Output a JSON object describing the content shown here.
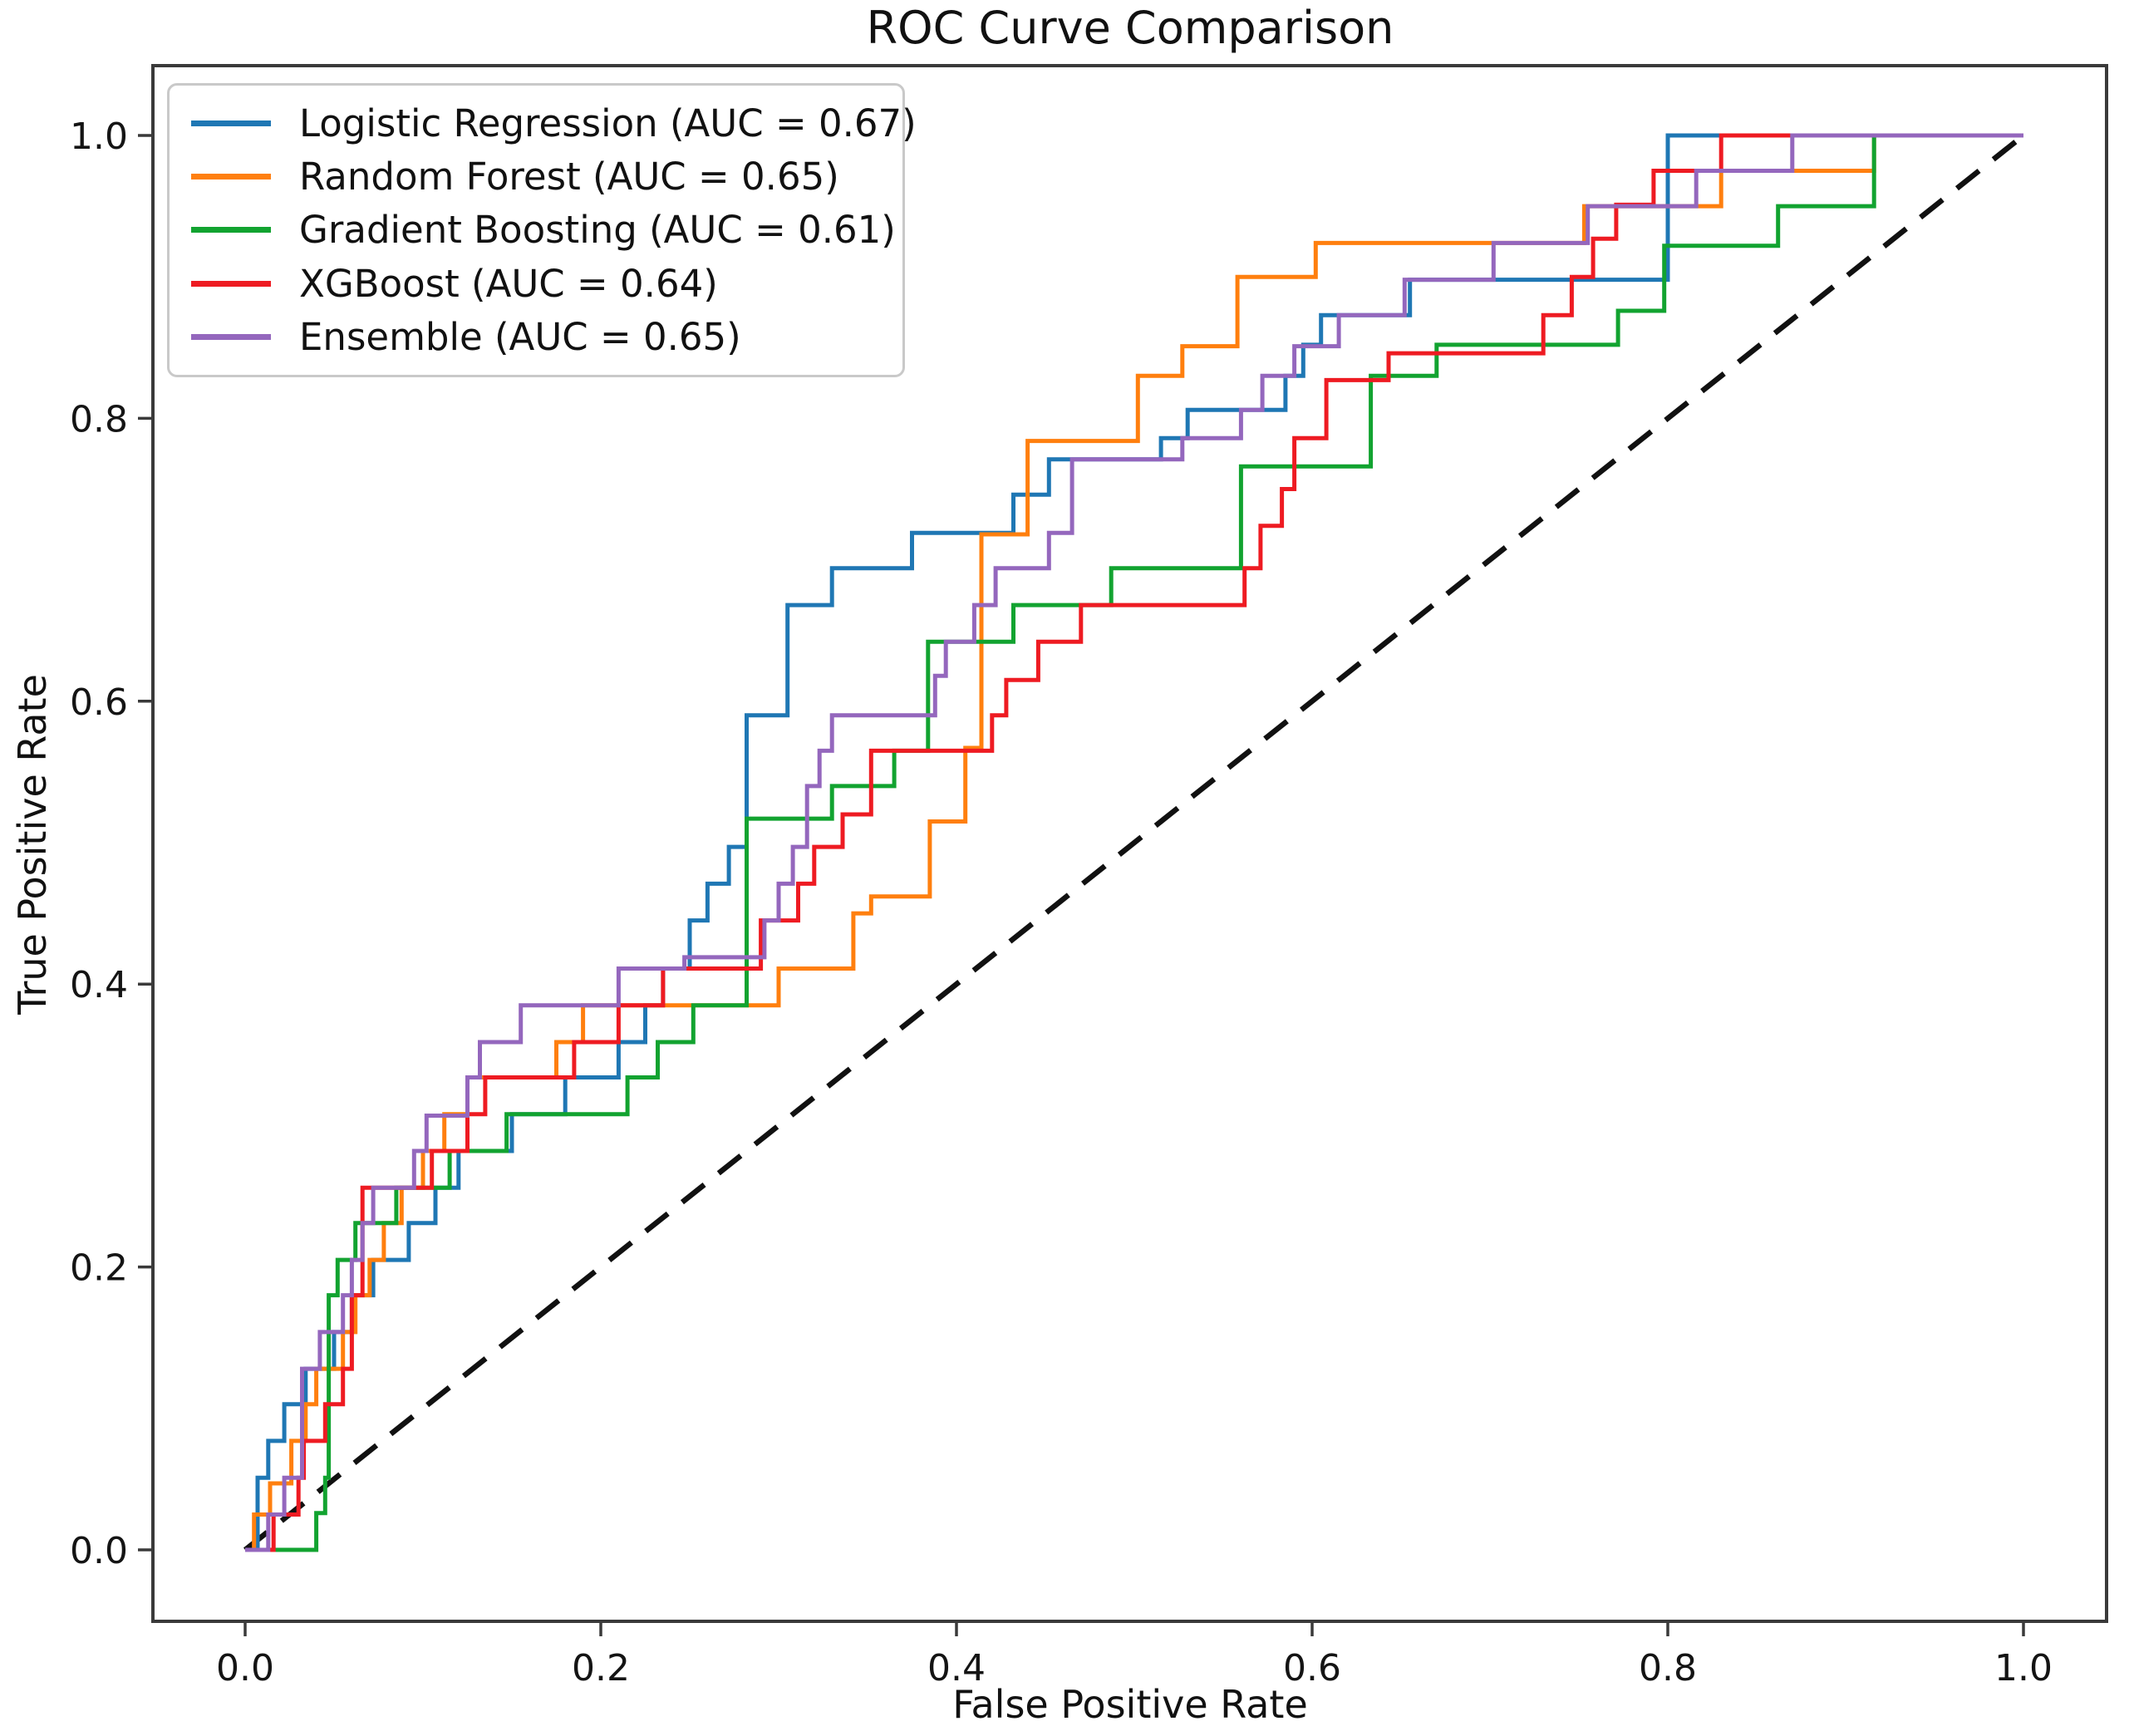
{
  "title": "ROC Curve Comparison",
  "axes": {
    "x_label": "False Positive Rate",
    "y_label": "True Positive Rate",
    "x_tick_values": [
      0.0,
      0.2,
      0.4,
      0.6,
      0.8,
      1.0
    ],
    "y_tick_values": [
      0.0,
      0.2,
      0.4,
      0.6,
      0.8,
      1.0
    ],
    "x_tick_labels": [
      "0.0",
      "0.2",
      "0.4",
      "0.6",
      "0.8",
      "1.0"
    ],
    "y_tick_labels": [
      "0.0",
      "0.2",
      "0.4",
      "0.6",
      "0.8",
      "1.0"
    ]
  },
  "legend": {
    "position": "upper left",
    "items": [
      {
        "label": "Logistic Regression (AUC = 0.67)",
        "color": "#1f77b4"
      },
      {
        "label": "Random Forest (AUC = 0.65)",
        "color": "#ff7f0e"
      },
      {
        "label": "Gradient Boosting (AUC = 0.61)",
        "color": "#12a330"
      },
      {
        "label": "XGBoost (AUC = 0.64)",
        "color": "#ee1b22"
      },
      {
        "label": "Ensemble (AUC = 0.65)",
        "color": "#9467bd"
      }
    ]
  },
  "chart_data": {
    "type": "line",
    "subtype": "roc-step",
    "title": "ROC Curve Comparison",
    "xlabel": "False Positive Rate",
    "ylabel": "True Positive Rate",
    "xlim": [
      0,
      1
    ],
    "ylim": [
      0,
      1
    ],
    "grid": false,
    "legend_position": "upper left",
    "diagonal": {
      "name": "chance-line",
      "color": "#111111",
      "style": "dashed",
      "points": [
        [
          0,
          0
        ],
        [
          1,
          1
        ]
      ]
    },
    "series": [
      {
        "name": "Logistic Regression",
        "auc": 0.67,
        "color": "#1f77b4",
        "points": [
          [
            0,
            0
          ],
          [
            0.007,
            0.051
          ],
          [
            0.013,
            0.077
          ],
          [
            0.022,
            0.103
          ],
          [
            0.034,
            0.128
          ],
          [
            0.05,
            0.154
          ],
          [
            0.06,
            0.18
          ],
          [
            0.072,
            0.205
          ],
          [
            0.092,
            0.231
          ],
          [
            0.107,
            0.256
          ],
          [
            0.12,
            0.282
          ],
          [
            0.15,
            0.308
          ],
          [
            0.18,
            0.334
          ],
          [
            0.21,
            0.359
          ],
          [
            0.225,
            0.385
          ],
          [
            0.235,
            0.411
          ],
          [
            0.25,
            0.445
          ],
          [
            0.26,
            0.471
          ],
          [
            0.272,
            0.497
          ],
          [
            0.282,
            0.59
          ],
          [
            0.305,
            0.668
          ],
          [
            0.33,
            0.694
          ],
          [
            0.375,
            0.719
          ],
          [
            0.432,
            0.746
          ],
          [
            0.452,
            0.771
          ],
          [
            0.515,
            0.786
          ],
          [
            0.53,
            0.806
          ],
          [
            0.585,
            0.83
          ],
          [
            0.595,
            0.852
          ],
          [
            0.605,
            0.873
          ],
          [
            0.655,
            0.898
          ],
          [
            0.8,
            1.0
          ],
          [
            1,
            1
          ]
        ]
      },
      {
        "name": "Random Forest",
        "auc": 0.65,
        "color": "#ff7f0e",
        "points": [
          [
            0,
            0
          ],
          [
            0.005,
            0.025
          ],
          [
            0.014,
            0.047
          ],
          [
            0.026,
            0.077
          ],
          [
            0.034,
            0.103
          ],
          [
            0.04,
            0.128
          ],
          [
            0.055,
            0.154
          ],
          [
            0.062,
            0.18
          ],
          [
            0.07,
            0.205
          ],
          [
            0.078,
            0.231
          ],
          [
            0.088,
            0.256
          ],
          [
            0.1,
            0.282
          ],
          [
            0.112,
            0.308
          ],
          [
            0.125,
            0.334
          ],
          [
            0.175,
            0.359
          ],
          [
            0.19,
            0.385
          ],
          [
            0.3,
            0.411
          ],
          [
            0.342,
            0.45
          ],
          [
            0.352,
            0.462
          ],
          [
            0.385,
            0.515
          ],
          [
            0.405,
            0.567
          ],
          [
            0.414,
            0.718
          ],
          [
            0.44,
            0.784
          ],
          [
            0.502,
            0.83
          ],
          [
            0.527,
            0.851
          ],
          [
            0.558,
            0.9
          ],
          [
            0.602,
            0.924
          ],
          [
            0.753,
            0.95
          ],
          [
            0.83,
            0.975
          ],
          [
            0.916,
            1.0
          ],
          [
            1,
            1
          ]
        ]
      },
      {
        "name": "Gradient Boosting",
        "auc": 0.61,
        "color": "#12a330",
        "points": [
          [
            0,
            0
          ],
          [
            0.03,
            0
          ],
          [
            0.04,
            0.026
          ],
          [
            0.045,
            0.051
          ],
          [
            0.047,
            0.18
          ],
          [
            0.052,
            0.205
          ],
          [
            0.062,
            0.231
          ],
          [
            0.085,
            0.256
          ],
          [
            0.115,
            0.282
          ],
          [
            0.147,
            0.308
          ],
          [
            0.215,
            0.334
          ],
          [
            0.232,
            0.359
          ],
          [
            0.252,
            0.385
          ],
          [
            0.282,
            0.517
          ],
          [
            0.33,
            0.54
          ],
          [
            0.365,
            0.565
          ],
          [
            0.384,
            0.642
          ],
          [
            0.432,
            0.668
          ],
          [
            0.487,
            0.694
          ],
          [
            0.56,
            0.766
          ],
          [
            0.633,
            0.83
          ],
          [
            0.67,
            0.852
          ],
          [
            0.772,
            0.876
          ],
          [
            0.798,
            0.922
          ],
          [
            0.862,
            0.95
          ],
          [
            0.916,
            1.0
          ],
          [
            1,
            1
          ]
        ]
      },
      {
        "name": "XGBoost",
        "auc": 0.64,
        "color": "#ee1b22",
        "points": [
          [
            0,
            0
          ],
          [
            0.016,
            0.025
          ],
          [
            0.03,
            0.051
          ],
          [
            0.033,
            0.077
          ],
          [
            0.045,
            0.103
          ],
          [
            0.055,
            0.128
          ],
          [
            0.06,
            0.18
          ],
          [
            0.066,
            0.256
          ],
          [
            0.105,
            0.282
          ],
          [
            0.125,
            0.308
          ],
          [
            0.135,
            0.334
          ],
          [
            0.185,
            0.359
          ],
          [
            0.21,
            0.385
          ],
          [
            0.235,
            0.411
          ],
          [
            0.29,
            0.445
          ],
          [
            0.311,
            0.471
          ],
          [
            0.32,
            0.497
          ],
          [
            0.336,
            0.52
          ],
          [
            0.352,
            0.565
          ],
          [
            0.42,
            0.59
          ],
          [
            0.428,
            0.615
          ],
          [
            0.446,
            0.642
          ],
          [
            0.47,
            0.668
          ],
          [
            0.562,
            0.694
          ],
          [
            0.571,
            0.724
          ],
          [
            0.583,
            0.75
          ],
          [
            0.59,
            0.786
          ],
          [
            0.608,
            0.827
          ],
          [
            0.643,
            0.846
          ],
          [
            0.73,
            0.873
          ],
          [
            0.746,
            0.9
          ],
          [
            0.758,
            0.927
          ],
          [
            0.771,
            0.951
          ],
          [
            0.792,
            0.975
          ],
          [
            0.83,
            1.0
          ],
          [
            1,
            1
          ]
        ]
      },
      {
        "name": "Ensemble",
        "auc": 0.65,
        "color": "#9467bd",
        "points": [
          [
            0,
            0
          ],
          [
            0.011,
            0
          ],
          [
            0.013,
            0.025
          ],
          [
            0.022,
            0.051
          ],
          [
            0.032,
            0.128
          ],
          [
            0.042,
            0.154
          ],
          [
            0.055,
            0.18
          ],
          [
            0.06,
            0.205
          ],
          [
            0.066,
            0.231
          ],
          [
            0.072,
            0.256
          ],
          [
            0.095,
            0.282
          ],
          [
            0.102,
            0.307
          ],
          [
            0.125,
            0.334
          ],
          [
            0.132,
            0.359
          ],
          [
            0.155,
            0.385
          ],
          [
            0.21,
            0.411
          ],
          [
            0.247,
            0.419
          ],
          [
            0.292,
            0.445
          ],
          [
            0.3,
            0.471
          ],
          [
            0.308,
            0.497
          ],
          [
            0.316,
            0.54
          ],
          [
            0.323,
            0.565
          ],
          [
            0.33,
            0.59
          ],
          [
            0.388,
            0.618
          ],
          [
            0.394,
            0.642
          ],
          [
            0.41,
            0.668
          ],
          [
            0.422,
            0.694
          ],
          [
            0.452,
            0.719
          ],
          [
            0.465,
            0.771
          ],
          [
            0.527,
            0.786
          ],
          [
            0.56,
            0.806
          ],
          [
            0.572,
            0.83
          ],
          [
            0.59,
            0.851
          ],
          [
            0.615,
            0.873
          ],
          [
            0.652,
            0.898
          ],
          [
            0.702,
            0.924
          ],
          [
            0.755,
            0.95
          ],
          [
            0.816,
            0.975
          ],
          [
            0.87,
            1.0
          ],
          [
            1,
            1
          ]
        ]
      }
    ]
  }
}
